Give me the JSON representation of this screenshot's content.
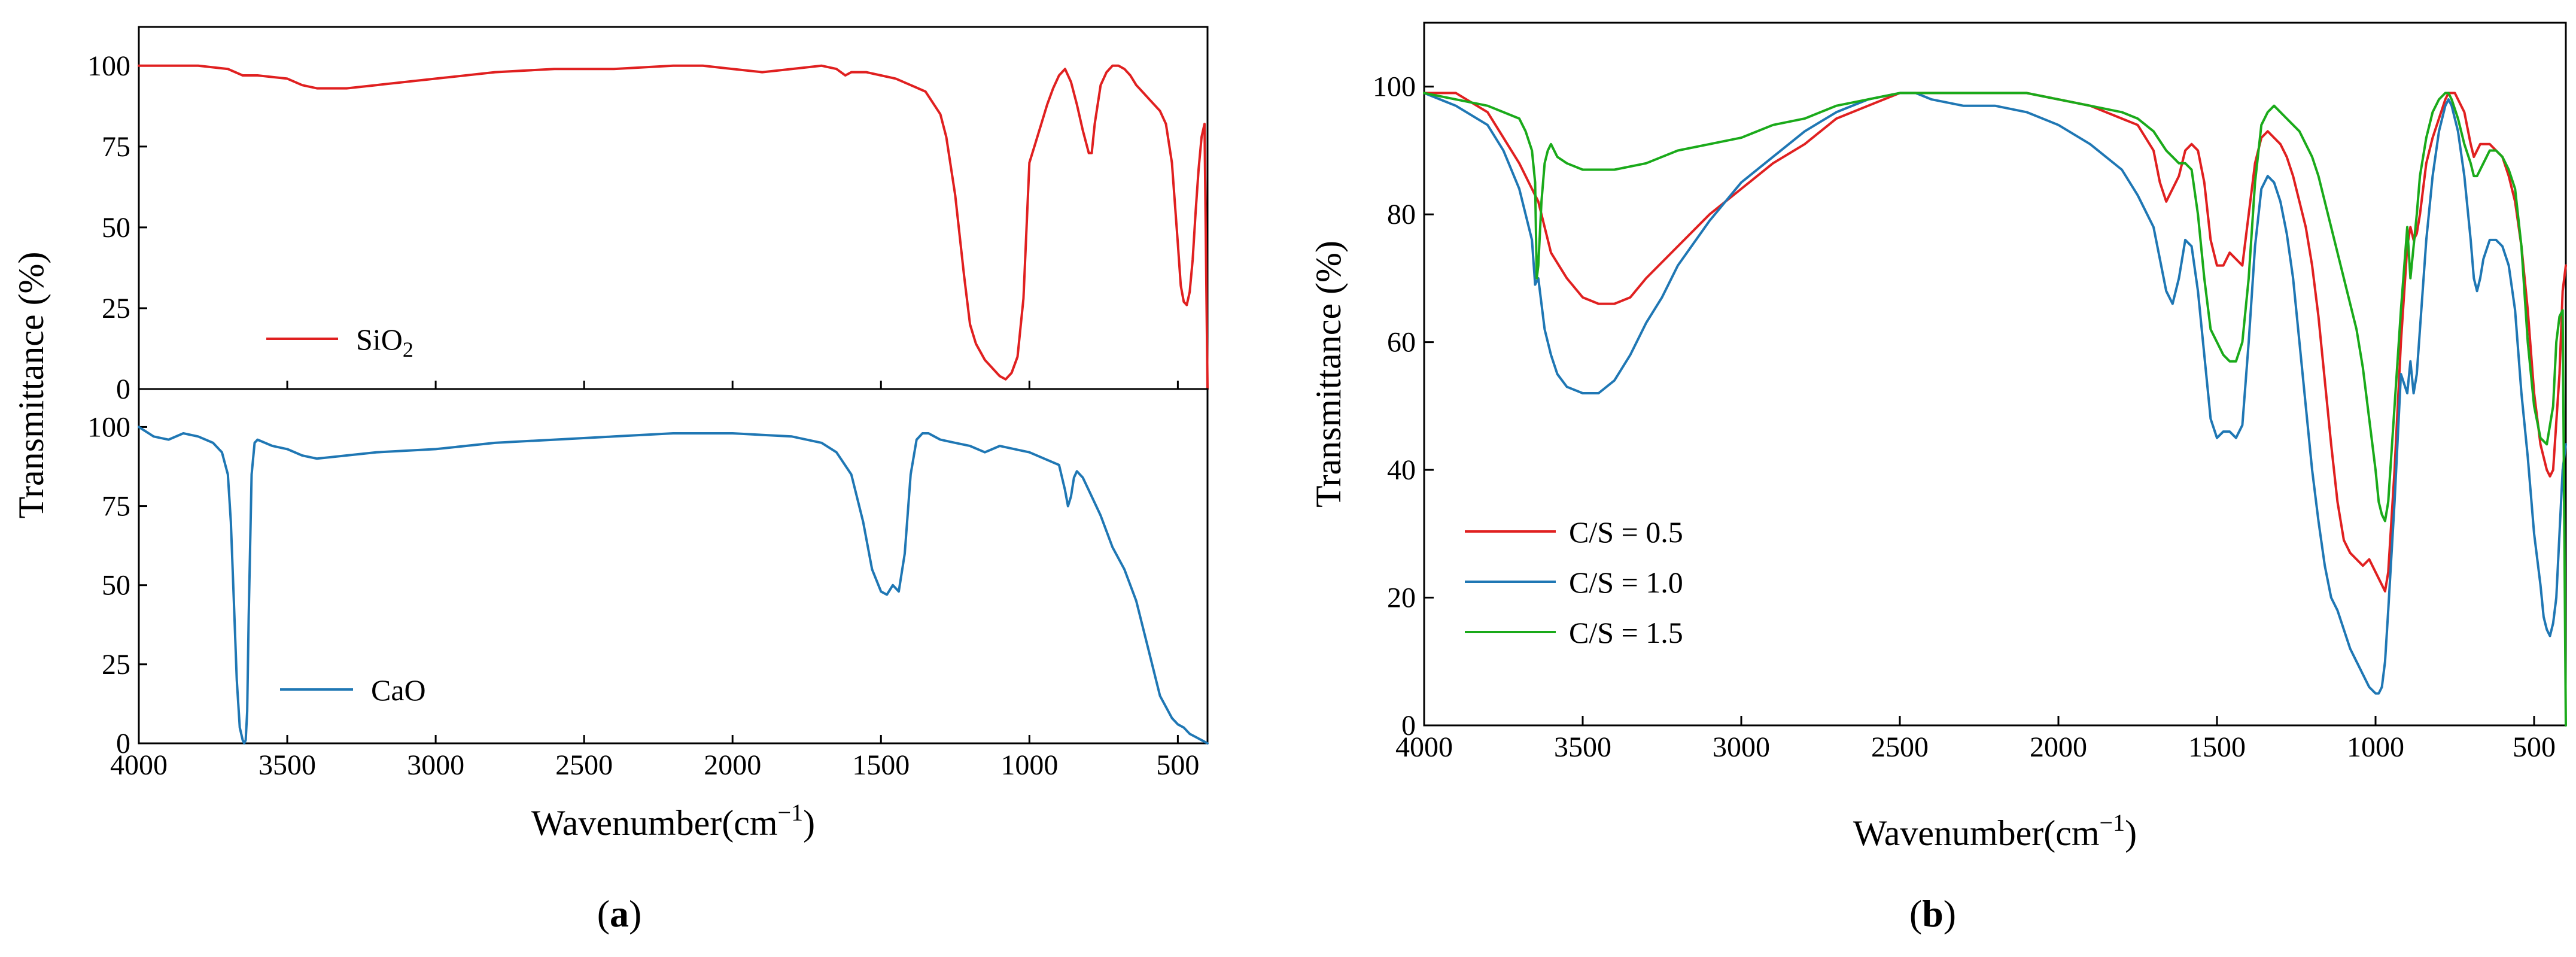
{
  "chart_data": [
    {
      "panel": "a",
      "type": "line",
      "panel_label": "a",
      "xlabel": "Wavenumber(cm",
      "xlabel_sup": "−1",
      "xlabel_close": ")",
      "ylabel": "Transmittance (%)",
      "xlim": [
        4000,
        400
      ],
      "xticks": [
        4000,
        3500,
        3000,
        2500,
        2000,
        1500,
        1000,
        500
      ],
      "subplots": [
        {
          "name": "top",
          "ylim": [
            0,
            112
          ],
          "yticks": [
            0,
            25,
            50,
            75,
            100
          ],
          "series": [
            {
              "name": "SiO2",
              "legend_main": "SiO",
              "legend_sub": "2",
              "color": "#e02020",
              "x": [
                4000,
                3800,
                3700,
                3650,
                3600,
                3500,
                3450,
                3400,
                3350,
                3300,
                3200,
                3000,
                2800,
                2600,
                2400,
                2200,
                2100,
                2000,
                1900,
                1800,
                1700,
                1650,
                1620,
                1600,
                1550,
                1500,
                1450,
                1400,
                1350,
                1300,
                1280,
                1250,
                1220,
                1200,
                1180,
                1150,
                1120,
                1100,
                1080,
                1060,
                1040,
                1020,
                1000,
                980,
                960,
                940,
                920,
                900,
                880,
                860,
                840,
                820,
                800,
                790,
                780,
                760,
                740,
                720,
                700,
                680,
                660,
                640,
                620,
                600,
                560,
                540,
                520,
                500,
                490,
                480,
                470,
                460,
                450,
                440,
                430,
                420,
                410,
                400
              ],
              "y": [
                100,
                100,
                99,
                97,
                97,
                96,
                94,
                93,
                93,
                93,
                94,
                96,
                98,
                99,
                99,
                100,
                100,
                99,
                98,
                99,
                100,
                99,
                97,
                98,
                98,
                97,
                96,
                94,
                92,
                85,
                78,
                60,
                35,
                20,
                14,
                9,
                6,
                4,
                3,
                5,
                10,
                28,
                70,
                76,
                82,
                88,
                93,
                97,
                99,
                95,
                88,
                80,
                73,
                73,
                82,
                94,
                98,
                100,
                100,
                99,
                97,
                94,
                92,
                90,
                86,
                82,
                70,
                45,
                32,
                27,
                26,
                30,
                40,
                55,
                68,
                78,
                82,
                0
              ]
            }
          ]
        },
        {
          "name": "bottom",
          "ylim": [
            0,
            112
          ],
          "yticks": [
            0,
            25,
            50,
            75,
            100
          ],
          "series": [
            {
              "name": "CaO",
              "legend_main": "CaO",
              "color": "#1f77b4",
              "x": [
                4000,
                3950,
                3900,
                3850,
                3800,
                3750,
                3720,
                3700,
                3690,
                3680,
                3670,
                3660,
                3650,
                3645,
                3640,
                3635,
                3630,
                3620,
                3610,
                3600,
                3550,
                3500,
                3450,
                3400,
                3300,
                3200,
                3000,
                2800,
                2600,
                2400,
                2200,
                2000,
                1800,
                1700,
                1650,
                1600,
                1560,
                1530,
                1500,
                1480,
                1460,
                1440,
                1420,
                1400,
                1380,
                1360,
                1340,
                1320,
                1300,
                1250,
                1200,
                1150,
                1100,
                1050,
                1000,
                950,
                900,
                880,
                870,
                860,
                850,
                840,
                820,
                800,
                760,
                720,
                680,
                640,
                600,
                560,
                520,
                500,
                480,
                460,
                440,
                420,
                400
              ],
              "y": [
                100,
                97,
                96,
                98,
                97,
                95,
                92,
                85,
                70,
                45,
                20,
                5,
                1,
                0,
                1,
                10,
                40,
                85,
                95,
                96,
                94,
                93,
                91,
                90,
                91,
                92,
                93,
                95,
                96,
                97,
                98,
                98,
                97,
                95,
                92,
                85,
                70,
                55,
                48,
                47,
                50,
                48,
                60,
                85,
                96,
                98,
                98,
                97,
                96,
                95,
                94,
                92,
                94,
                93,
                92,
                90,
                88,
                80,
                75,
                78,
                84,
                86,
                84,
                80,
                72,
                62,
                55,
                45,
                30,
                15,
                8,
                6,
                5,
                3,
                2,
                1,
                0
              ]
            }
          ]
        }
      ]
    },
    {
      "panel": "b",
      "type": "line",
      "panel_label": "b",
      "xlabel": "Wavenumber(cm",
      "xlabel_sup": "−1",
      "xlabel_close": ")",
      "ylabel": "Transmittance (%)",
      "xlim": [
        4000,
        400
      ],
      "ylim": [
        0,
        110
      ],
      "xticks": [
        4000,
        3500,
        3000,
        2500,
        2000,
        1500,
        1000,
        500
      ],
      "yticks": [
        0,
        20,
        40,
        60,
        80,
        100
      ],
      "legend_location": "lower-left",
      "series": [
        {
          "name": "C/S = 0.5",
          "color": "#e02020",
          "x": [
            4000,
            3900,
            3800,
            3750,
            3700,
            3660,
            3640,
            3620,
            3600,
            3550,
            3500,
            3450,
            3400,
            3350,
            3300,
            3200,
            3100,
            3000,
            2900,
            2800,
            2700,
            2600,
            2500,
            2400,
            2300,
            2200,
            2100,
            2000,
            1900,
            1800,
            1750,
            1700,
            1680,
            1660,
            1640,
            1620,
            1600,
            1580,
            1560,
            1540,
            1520,
            1500,
            1480,
            1460,
            1440,
            1420,
            1400,
            1380,
            1360,
            1340,
            1320,
            1300,
            1280,
            1260,
            1240,
            1220,
            1200,
            1180,
            1160,
            1140,
            1120,
            1100,
            1080,
            1060,
            1040,
            1020,
            1000,
            980,
            970,
            960,
            940,
            920,
            900,
            890,
            880,
            870,
            860,
            850,
            840,
            820,
            800,
            780,
            770,
            760,
            750,
            740,
            720,
            700,
            690,
            680,
            670,
            660,
            640,
            620,
            600,
            580,
            560,
            540,
            520,
            500,
            480,
            460,
            450,
            440,
            420,
            410,
            400
          ],
          "y": [
            99,
            99,
            96,
            92,
            88,
            84,
            82,
            78,
            74,
            70,
            67,
            66,
            66,
            67,
            70,
            75,
            80,
            84,
            88,
            91,
            95,
            97,
            99,
            99,
            99,
            99,
            99,
            98,
            97,
            95,
            94,
            90,
            85,
            82,
            84,
            86,
            90,
            91,
            90,
            85,
            76,
            72,
            72,
            74,
            73,
            72,
            80,
            88,
            92,
            93,
            92,
            91,
            89,
            86,
            82,
            78,
            72,
            64,
            54,
            44,
            35,
            29,
            27,
            26,
            25,
            26,
            24,
            22,
            21,
            24,
            40,
            60,
            75,
            78,
            76,
            77,
            80,
            84,
            88,
            92,
            95,
            98,
            99,
            99,
            99,
            98,
            96,
            91,
            89,
            90,
            91,
            91,
            91,
            90,
            89,
            86,
            82,
            75,
            65,
            52,
            44,
            40,
            39,
            40,
            55,
            68,
            72
          ]
        },
        {
          "name": "C/S = 1.0",
          "color": "#1f77b4",
          "x": [
            4000,
            3900,
            3800,
            3750,
            3700,
            3660,
            3650,
            3640,
            3630,
            3620,
            3600,
            3580,
            3550,
            3500,
            3450,
            3400,
            3350,
            3300,
            3250,
            3200,
            3100,
            3000,
            2900,
            2800,
            2700,
            2600,
            2500,
            2450,
            2400,
            2300,
            2200,
            2100,
            2000,
            1900,
            1800,
            1750,
            1700,
            1660,
            1640,
            1620,
            1600,
            1580,
            1560,
            1540,
            1520,
            1500,
            1480,
            1460,
            1440,
            1420,
            1400,
            1380,
            1360,
            1340,
            1320,
            1300,
            1280,
            1260,
            1240,
            1220,
            1200,
            1180,
            1160,
            1140,
            1120,
            1100,
            1080,
            1060,
            1040,
            1020,
            1000,
            990,
            980,
            970,
            960,
            940,
            920,
            900,
            890,
            880,
            870,
            860,
            840,
            820,
            800,
            780,
            770,
            760,
            740,
            720,
            700,
            690,
            680,
            670,
            660,
            640,
            620,
            600,
            580,
            560,
            540,
            520,
            500,
            480,
            470,
            460,
            450,
            440,
            430,
            420,
            410,
            400
          ],
          "y": [
            99,
            97,
            94,
            90,
            84,
            76,
            69,
            70,
            66,
            62,
            58,
            55,
            53,
            52,
            52,
            54,
            58,
            63,
            67,
            72,
            79,
            85,
            89,
            93,
            96,
            98,
            99,
            99,
            98,
            97,
            97,
            96,
            94,
            91,
            87,
            83,
            78,
            68,
            66,
            70,
            76,
            75,
            68,
            58,
            48,
            45,
            46,
            46,
            45,
            47,
            60,
            75,
            84,
            86,
            85,
            82,
            77,
            70,
            60,
            50,
            40,
            32,
            25,
            20,
            18,
            15,
            12,
            10,
            8,
            6,
            5,
            5,
            6,
            10,
            18,
            35,
            55,
            52,
            57,
            52,
            55,
            62,
            76,
            86,
            93,
            97,
            98,
            97,
            93,
            86,
            76,
            70,
            68,
            70,
            73,
            76,
            76,
            75,
            72,
            65,
            52,
            42,
            30,
            22,
            17,
            15,
            14,
            16,
            20,
            30,
            40,
            44
          ]
        },
        {
          "name": "C/S = 1.5",
          "color": "#1aaa1a",
          "x": [
            4000,
            3900,
            3800,
            3750,
            3700,
            3680,
            3660,
            3650,
            3645,
            3640,
            3630,
            3620,
            3610,
            3600,
            3580,
            3550,
            3500,
            3450,
            3400,
            3300,
            3200,
            3100,
            3000,
            2900,
            2800,
            2700,
            2600,
            2500,
            2400,
            2300,
            2200,
            2100,
            2000,
            1900,
            1800,
            1750,
            1700,
            1660,
            1640,
            1620,
            1600,
            1580,
            1560,
            1540,
            1520,
            1500,
            1480,
            1460,
            1440,
            1420,
            1400,
            1380,
            1360,
            1340,
            1320,
            1300,
            1280,
            1260,
            1240,
            1220,
            1200,
            1180,
            1160,
            1140,
            1120,
            1100,
            1080,
            1060,
            1040,
            1020,
            1000,
            990,
            980,
            970,
            960,
            940,
            920,
            900,
            890,
            880,
            870,
            860,
            840,
            820,
            800,
            780,
            770,
            760,
            740,
            720,
            700,
            690,
            680,
            670,
            660,
            640,
            620,
            600,
            580,
            560,
            540,
            520,
            500,
            480,
            460,
            440,
            430,
            420,
            410,
            400
          ],
          "y": [
            99,
            98,
            97,
            96,
            95,
            93,
            90,
            85,
            70,
            72,
            82,
            88,
            90,
            91,
            89,
            88,
            87,
            87,
            87,
            88,
            90,
            91,
            92,
            94,
            95,
            97,
            98,
            99,
            99,
            99,
            99,
            99,
            98,
            97,
            96,
            95,
            93,
            90,
            89,
            88,
            88,
            87,
            80,
            70,
            62,
            60,
            58,
            57,
            57,
            60,
            70,
            85,
            94,
            96,
            97,
            96,
            95,
            94,
            93,
            91,
            89,
            86,
            82,
            78,
            74,
            70,
            66,
            62,
            56,
            48,
            40,
            35,
            33,
            32,
            35,
            50,
            65,
            78,
            70,
            75,
            80,
            86,
            92,
            96,
            98,
            99,
            99,
            98,
            95,
            91,
            88,
            86,
            86,
            87,
            88,
            90,
            90,
            89,
            87,
            84,
            75,
            60,
            50,
            45,
            44,
            50,
            60,
            64,
            65,
            0
          ]
        }
      ]
    }
  ]
}
